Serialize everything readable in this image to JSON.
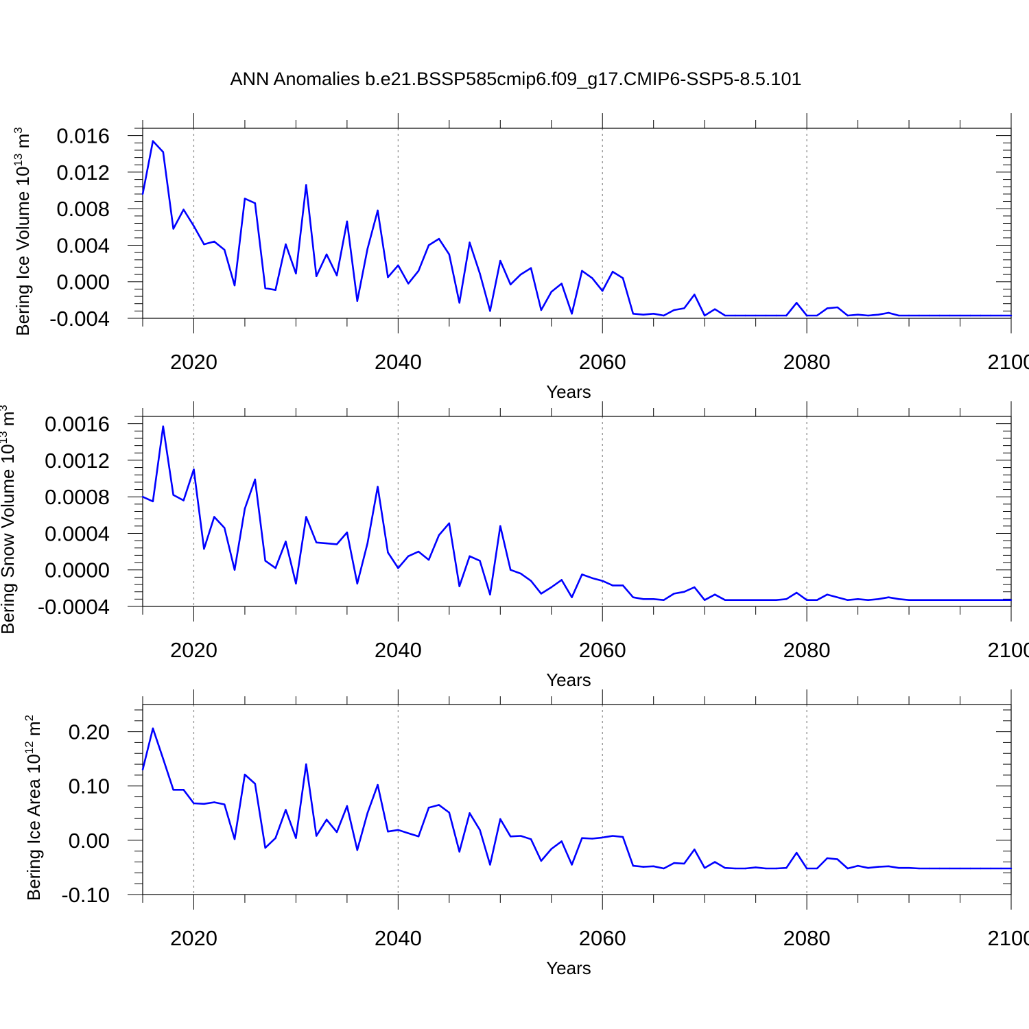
{
  "title": "ANN Anomalies b.e21.BSSP585cmip6.f09_g17.CMIP6-SSP5-8.5.101",
  "colors": {
    "line": "#0000ff",
    "axis": "#000000",
    "grid": "#888888"
  },
  "chart_data": [
    {
      "type": "line",
      "ylabel": "Bering Ice Volume 10",
      "ylabel_exp": "13",
      "ylabel_unit": " m",
      "ylabel_unit_exp": "3",
      "xlabel": "Years",
      "xlim": [
        2015,
        2100
      ],
      "ylim": [
        -0.004,
        0.0168
      ],
      "yticks": [
        -0.004,
        0.0,
        0.004,
        0.008,
        0.012,
        0.016
      ],
      "ytick_labels": [
        "-0.004",
        "0.000",
        "0.004",
        "0.008",
        "0.012",
        "0.016"
      ],
      "xticks": [
        2020,
        2040,
        2060,
        2080,
        2100
      ],
      "xtick_labels": [
        "2020",
        "2040",
        "2060",
        "2080",
        "2100"
      ],
      "gridlines_x": [
        2020,
        2040,
        2060,
        2080
      ],
      "x": [
        2015,
        2016,
        2017,
        2018,
        2019,
        2020,
        2021,
        2022,
        2023,
        2024,
        2025,
        2026,
        2027,
        2028,
        2029,
        2030,
        2031,
        2032,
        2033,
        2034,
        2035,
        2036,
        2037,
        2038,
        2039,
        2040,
        2041,
        2042,
        2043,
        2044,
        2045,
        2046,
        2047,
        2048,
        2049,
        2050,
        2051,
        2052,
        2053,
        2054,
        2055,
        2056,
        2057,
        2058,
        2059,
        2060,
        2061,
        2062,
        2063,
        2064,
        2065,
        2066,
        2067,
        2068,
        2069,
        2070,
        2071,
        2072,
        2073,
        2074,
        2075,
        2076,
        2077,
        2078,
        2079,
        2080,
        2081,
        2082,
        2083,
        2084,
        2085,
        2086,
        2087,
        2088,
        2089,
        2090,
        2091,
        2092,
        2093,
        2094,
        2095,
        2096,
        2097,
        2098,
        2099,
        2100
      ],
      "values": [
        0.0096,
        0.0154,
        0.0142,
        0.0058,
        0.0079,
        0.0061,
        0.0041,
        0.0044,
        0.0035,
        -0.0004,
        0.0091,
        0.0086,
        -0.0007,
        -0.0009,
        0.0041,
        0.0009,
        0.0106,
        0.0006,
        0.003,
        0.0007,
        0.0066,
        -0.0021,
        0.0036,
        0.0078,
        0.0005,
        0.0018,
        -0.0002,
        0.0012,
        0.004,
        0.0047,
        0.003,
        -0.0023,
        0.0043,
        0.0009,
        -0.0032,
        0.0023,
        -0.0003,
        0.0008,
        0.0015,
        -0.0031,
        -0.0011,
        -0.0002,
        -0.0035,
        0.0012,
        0.0004,
        -0.001,
        0.0011,
        0.0004,
        -0.0035,
        -0.0036,
        -0.0035,
        -0.0037,
        -0.0031,
        -0.0029,
        -0.0014,
        -0.0037,
        -0.003,
        -0.0037,
        -0.0037,
        -0.0037,
        -0.0037,
        -0.0037,
        -0.0037,
        -0.0037,
        -0.0023,
        -0.0037,
        -0.0037,
        -0.0029,
        -0.0028,
        -0.0037,
        -0.0036,
        -0.0037,
        -0.0036,
        -0.0034,
        -0.0037,
        -0.0037,
        -0.0037,
        -0.0037,
        -0.0037,
        -0.0037,
        -0.0037,
        -0.0037,
        -0.0037,
        -0.0037,
        -0.0037,
        -0.0037
      ]
    },
    {
      "type": "line",
      "ylabel": "Bering Snow Volume 10",
      "ylabel_exp": "13",
      "ylabel_unit": " m",
      "ylabel_unit_exp": "3",
      "xlabel": "Years",
      "xlim": [
        2015,
        2100
      ],
      "ylim": [
        -0.0004,
        0.00168
      ],
      "yticks": [
        -0.0004,
        0.0,
        0.0004,
        0.0008,
        0.0012,
        0.0016
      ],
      "ytick_labels": [
        "-0.0004",
        "0.0000",
        "0.0004",
        "0.0008",
        "0.0012",
        "0.0016"
      ],
      "xticks": [
        2020,
        2040,
        2060,
        2080,
        2100
      ],
      "xtick_labels": [
        "2020",
        "2040",
        "2060",
        "2080",
        "2100"
      ],
      "gridlines_x": [
        2020,
        2040,
        2060,
        2080
      ],
      "x": [
        2015,
        2016,
        2017,
        2018,
        2019,
        2020,
        2021,
        2022,
        2023,
        2024,
        2025,
        2026,
        2027,
        2028,
        2029,
        2030,
        2031,
        2032,
        2033,
        2034,
        2035,
        2036,
        2037,
        2038,
        2039,
        2040,
        2041,
        2042,
        2043,
        2044,
        2045,
        2046,
        2047,
        2048,
        2049,
        2050,
        2051,
        2052,
        2053,
        2054,
        2055,
        2056,
        2057,
        2058,
        2059,
        2060,
        2061,
        2062,
        2063,
        2064,
        2065,
        2066,
        2067,
        2068,
        2069,
        2070,
        2071,
        2072,
        2073,
        2074,
        2075,
        2076,
        2077,
        2078,
        2079,
        2080,
        2081,
        2082,
        2083,
        2084,
        2085,
        2086,
        2087,
        2088,
        2089,
        2090,
        2091,
        2092,
        2093,
        2094,
        2095,
        2096,
        2097,
        2098,
        2099,
        2100
      ],
      "values": [
        0.0008,
        0.00075,
        0.00157,
        0.00082,
        0.00076,
        0.0011,
        0.00023,
        0.00058,
        0.00046,
        0.0,
        0.00067,
        0.00099,
        0.0001,
        2e-05,
        0.00031,
        -0.00015,
        0.00058,
        0.0003,
        0.00029,
        0.00028,
        0.00041,
        -0.00015,
        0.00029,
        0.00091,
        0.00019,
        2e-05,
        0.00015,
        0.0002,
        0.00011,
        0.00038,
        0.00051,
        -0.00018,
        0.00015,
        0.0001,
        -0.00027,
        0.00048,
        0.0,
        -4e-05,
        -0.00012,
        -0.00026,
        -0.00019,
        -0.00011,
        -0.0003,
        -5e-05,
        -9e-05,
        -0.00012,
        -0.00017,
        -0.00017,
        -0.0003,
        -0.00032,
        -0.00032,
        -0.00033,
        -0.00026,
        -0.00024,
        -0.00019,
        -0.00033,
        -0.00027,
        -0.00033,
        -0.00033,
        -0.00033,
        -0.00033,
        -0.00033,
        -0.00033,
        -0.00032,
        -0.00025,
        -0.00033,
        -0.00033,
        -0.00027,
        -0.0003,
        -0.00033,
        -0.00032,
        -0.00033,
        -0.00032,
        -0.0003,
        -0.00032,
        -0.00033,
        -0.00033,
        -0.00033,
        -0.00033,
        -0.00033,
        -0.00033,
        -0.00033,
        -0.00033,
        -0.00033,
        -0.00033,
        -0.00033
      ]
    },
    {
      "type": "line",
      "ylabel": "Bering Ice Area 10",
      "ylabel_exp": "12",
      "ylabel_unit": " m",
      "ylabel_unit_exp": "2",
      "xlabel": "Years",
      "xlim": [
        2015,
        2100
      ],
      "ylim": [
        -0.1,
        0.25
      ],
      "yticks": [
        -0.1,
        0.0,
        0.1,
        0.2
      ],
      "ytick_labels": [
        "-0.10",
        "0.00",
        "0.10",
        "0.20"
      ],
      "xticks": [
        2020,
        2040,
        2060,
        2080,
        2100
      ],
      "xtick_labels": [
        "2020",
        "2040",
        "2060",
        "2080",
        "2100"
      ],
      "gridlines_x": [
        2020,
        2040,
        2060,
        2080
      ],
      "x": [
        2015,
        2016,
        2017,
        2018,
        2019,
        2020,
        2021,
        2022,
        2023,
        2024,
        2025,
        2026,
        2027,
        2028,
        2029,
        2030,
        2031,
        2032,
        2033,
        2034,
        2035,
        2036,
        2037,
        2038,
        2039,
        2040,
        2041,
        2042,
        2043,
        2044,
        2045,
        2046,
        2047,
        2048,
        2049,
        2050,
        2051,
        2052,
        2053,
        2054,
        2055,
        2056,
        2057,
        2058,
        2059,
        2060,
        2061,
        2062,
        2063,
        2064,
        2065,
        2066,
        2067,
        2068,
        2069,
        2070,
        2071,
        2072,
        2073,
        2074,
        2075,
        2076,
        2077,
        2078,
        2079,
        2080,
        2081,
        2082,
        2083,
        2084,
        2085,
        2086,
        2087,
        2088,
        2089,
        2090,
        2091,
        2092,
        2093,
        2094,
        2095,
        2096,
        2097,
        2098,
        2099,
        2100
      ],
      "values": [
        0.13,
        0.206,
        0.15,
        0.093,
        0.093,
        0.068,
        0.067,
        0.07,
        0.066,
        0.002,
        0.121,
        0.104,
        -0.014,
        0.004,
        0.056,
        0.004,
        0.14,
        0.008,
        0.038,
        0.015,
        0.063,
        -0.018,
        0.05,
        0.102,
        0.016,
        0.019,
        0.013,
        0.007,
        0.06,
        0.065,
        0.051,
        -0.021,
        0.05,
        0.019,
        -0.045,
        0.039,
        0.007,
        0.008,
        0.002,
        -0.038,
        -0.016,
        -0.002,
        -0.045,
        0.004,
        0.003,
        0.005,
        0.008,
        0.006,
        -0.047,
        -0.049,
        -0.048,
        -0.052,
        -0.042,
        -0.043,
        -0.017,
        -0.051,
        -0.04,
        -0.051,
        -0.052,
        -0.052,
        -0.05,
        -0.052,
        -0.052,
        -0.051,
        -0.023,
        -0.052,
        -0.052,
        -0.033,
        -0.035,
        -0.052,
        -0.047,
        -0.051,
        -0.049,
        -0.048,
        -0.051,
        -0.051,
        -0.052,
        -0.052,
        -0.052,
        -0.052,
        -0.052,
        -0.052,
        -0.052,
        -0.052,
        -0.052,
        -0.052
      ]
    }
  ]
}
